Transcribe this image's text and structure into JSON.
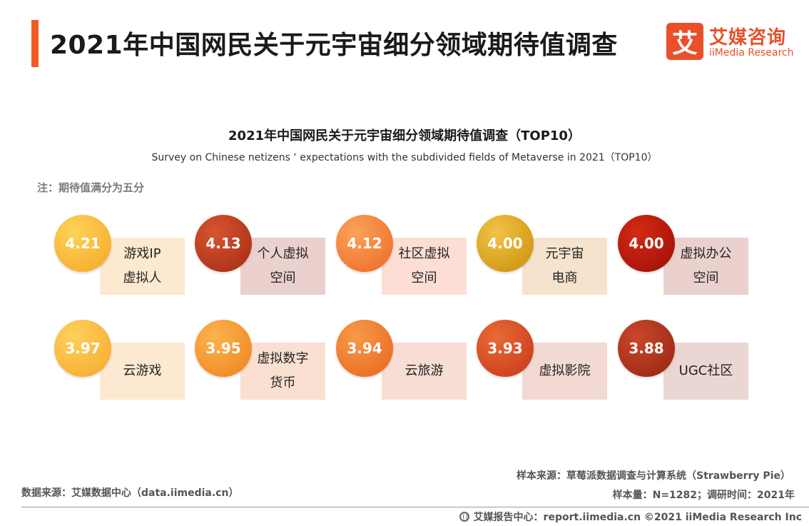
{
  "header": {
    "title": "2021年中国网民关于元宇宙细分领域期待值调查",
    "logo_mark": "艾",
    "logo_cn": "艾媒咨询",
    "logo_en": "iiMedia Research",
    "accent_color": "#f15a22"
  },
  "chart_data": {
    "type": "table",
    "title": "2021年中国网民关于元宇宙细分领域期待值调查（TOP10）",
    "subtitle": "Survey on Chinese netizens ‘ expectations with the subdivided fields of Metaverse in 2021（TOP10）",
    "note": "注：期待值满分为五分",
    "items": [
      {
        "value": "4.21",
        "label_lines": [
          "游戏IP",
          "虚拟人"
        ],
        "circle_colors": [
          "#fcd35a",
          "#f6a623"
        ],
        "box_color": "#fde9cf"
      },
      {
        "value": "4.13",
        "label_lines": [
          "个人虚拟",
          "空间"
        ],
        "circle_colors": [
          "#d7542e",
          "#a42a14"
        ],
        "box_color": "#ead1cd"
      },
      {
        "value": "4.12",
        "label_lines": [
          "社区虚拟",
          "空间"
        ],
        "circle_colors": [
          "#fba35a",
          "#ee6724"
        ],
        "box_color": "#fdded4"
      },
      {
        "value": "4.00",
        "label_lines": [
          "元宇宙",
          "电商"
        ],
        "circle_colors": [
          "#f1c246",
          "#c98f07"
        ],
        "box_color": "#f6e3cd"
      },
      {
        "value": "4.00",
        "label_lines": [
          "虚拟办公",
          "空间"
        ],
        "circle_colors": [
          "#d42a14",
          "#9c0e06"
        ],
        "box_color": "#ebd1cd"
      },
      {
        "value": "3.97",
        "label_lines": [
          "云游戏"
        ],
        "circle_colors": [
          "#fdd15d",
          "#f7a72a"
        ],
        "box_color": "#fde9d2"
      },
      {
        "value": "3.95",
        "label_lines": [
          "虚拟数字",
          "货币"
        ],
        "circle_colors": [
          "#fbb44e",
          "#f0801d"
        ],
        "box_color": "#f9e0d0"
      },
      {
        "value": "3.94",
        "label_lines": [
          "云旅游"
        ],
        "circle_colors": [
          "#f79a48",
          "#e8631d"
        ],
        "box_color": "#f8ddd4"
      },
      {
        "value": "3.93",
        "label_lines": [
          "虚拟影院"
        ],
        "circle_colors": [
          "#e96a34",
          "#c7361b"
        ],
        "box_color": "#f2d9d1"
      },
      {
        "value": "3.88",
        "label_lines": [
          "UGC社区"
        ],
        "circle_colors": [
          "#c9472c",
          "#96240f"
        ],
        "box_color": "#ead6d2"
      }
    ]
  },
  "footer": {
    "data_source": "数据来源：艾媒数据中心（data.iimedia.cn）",
    "sample_source": "样本来源：草莓派数据调查与计算系统（Strawberry Pie）",
    "sample_info": "样本量：N=1282；调研时间：2021年",
    "copyright": "艾媒报告中心：report.iimedia.cn  ©2021  iiMedia Research  Inc"
  }
}
